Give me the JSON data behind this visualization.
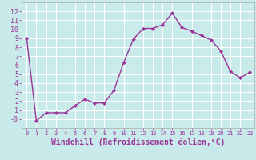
{
  "x": [
    0,
    1,
    2,
    3,
    4,
    5,
    6,
    7,
    8,
    9,
    10,
    11,
    12,
    13,
    14,
    15,
    16,
    17,
    18,
    19,
    20,
    21,
    22,
    23
  ],
  "y": [
    9,
    -0.2,
    0.7,
    0.7,
    0.7,
    1.5,
    2.2,
    1.8,
    1.8,
    3.2,
    6.3,
    8.9,
    10.1,
    10.1,
    10.5,
    11.8,
    10.2,
    9.8,
    9.3,
    8.8,
    7.6,
    5.3,
    4.6,
    5.2
  ],
  "line_color": "#993399",
  "marker": "D",
  "marker_size": 2,
  "linewidth": 1.0,
  "xlabel": "Windchill (Refroidissement éolien,°C)",
  "xlabel_fontsize": 7,
  "bg_color": "#c8eaea",
  "grid_color": "#ffffff",
  "label_color": "#993399",
  "ylim": [
    -1,
    13
  ],
  "xlim": [
    -0.5,
    23.5
  ],
  "yticks": [
    0,
    1,
    2,
    3,
    4,
    5,
    6,
    7,
    8,
    9,
    10,
    11,
    12
  ],
  "ytick_labels": [
    "-0",
    "1",
    "2",
    "3",
    "4",
    "5",
    "6",
    "7",
    "8",
    "9",
    "10",
    "11",
    "12"
  ],
  "xticks": [
    0,
    1,
    2,
    3,
    4,
    5,
    6,
    7,
    8,
    9,
    10,
    11,
    12,
    13,
    14,
    15,
    16,
    17,
    18,
    19,
    20,
    21,
    22,
    23
  ]
}
